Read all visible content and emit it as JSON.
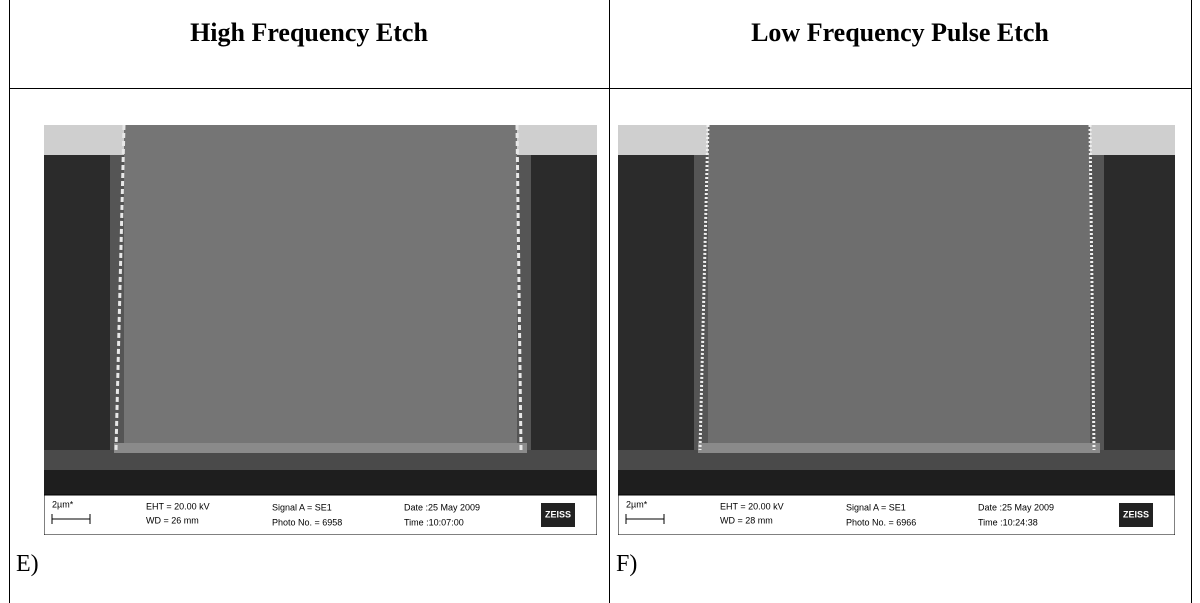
{
  "table": {
    "headers": [
      "High Frequency Etch",
      "Low Frequency Pulse Etch"
    ],
    "panels": [
      {
        "scale": "2µm*",
        "eht": "EHT = 20.00 kV",
        "wd": "WD =  26 mm",
        "signal": "Signal A = SE1",
        "photo": "Photo No. = 6958",
        "date": "Date :25 May 2009",
        "time": "Time :10:07:00",
        "logo": "ZEISS",
        "label": "E)"
      },
      {
        "scale": "2µm*",
        "eht": "EHT = 20.00 kV",
        "wd": "WD =  28 mm",
        "signal": "Signal A = SE1",
        "photo": "Photo No. = 6966",
        "date": "Date :25 May 2009",
        "time": "Time :10:24:38",
        "logo": "ZEISS",
        "label": "F)"
      }
    ]
  }
}
